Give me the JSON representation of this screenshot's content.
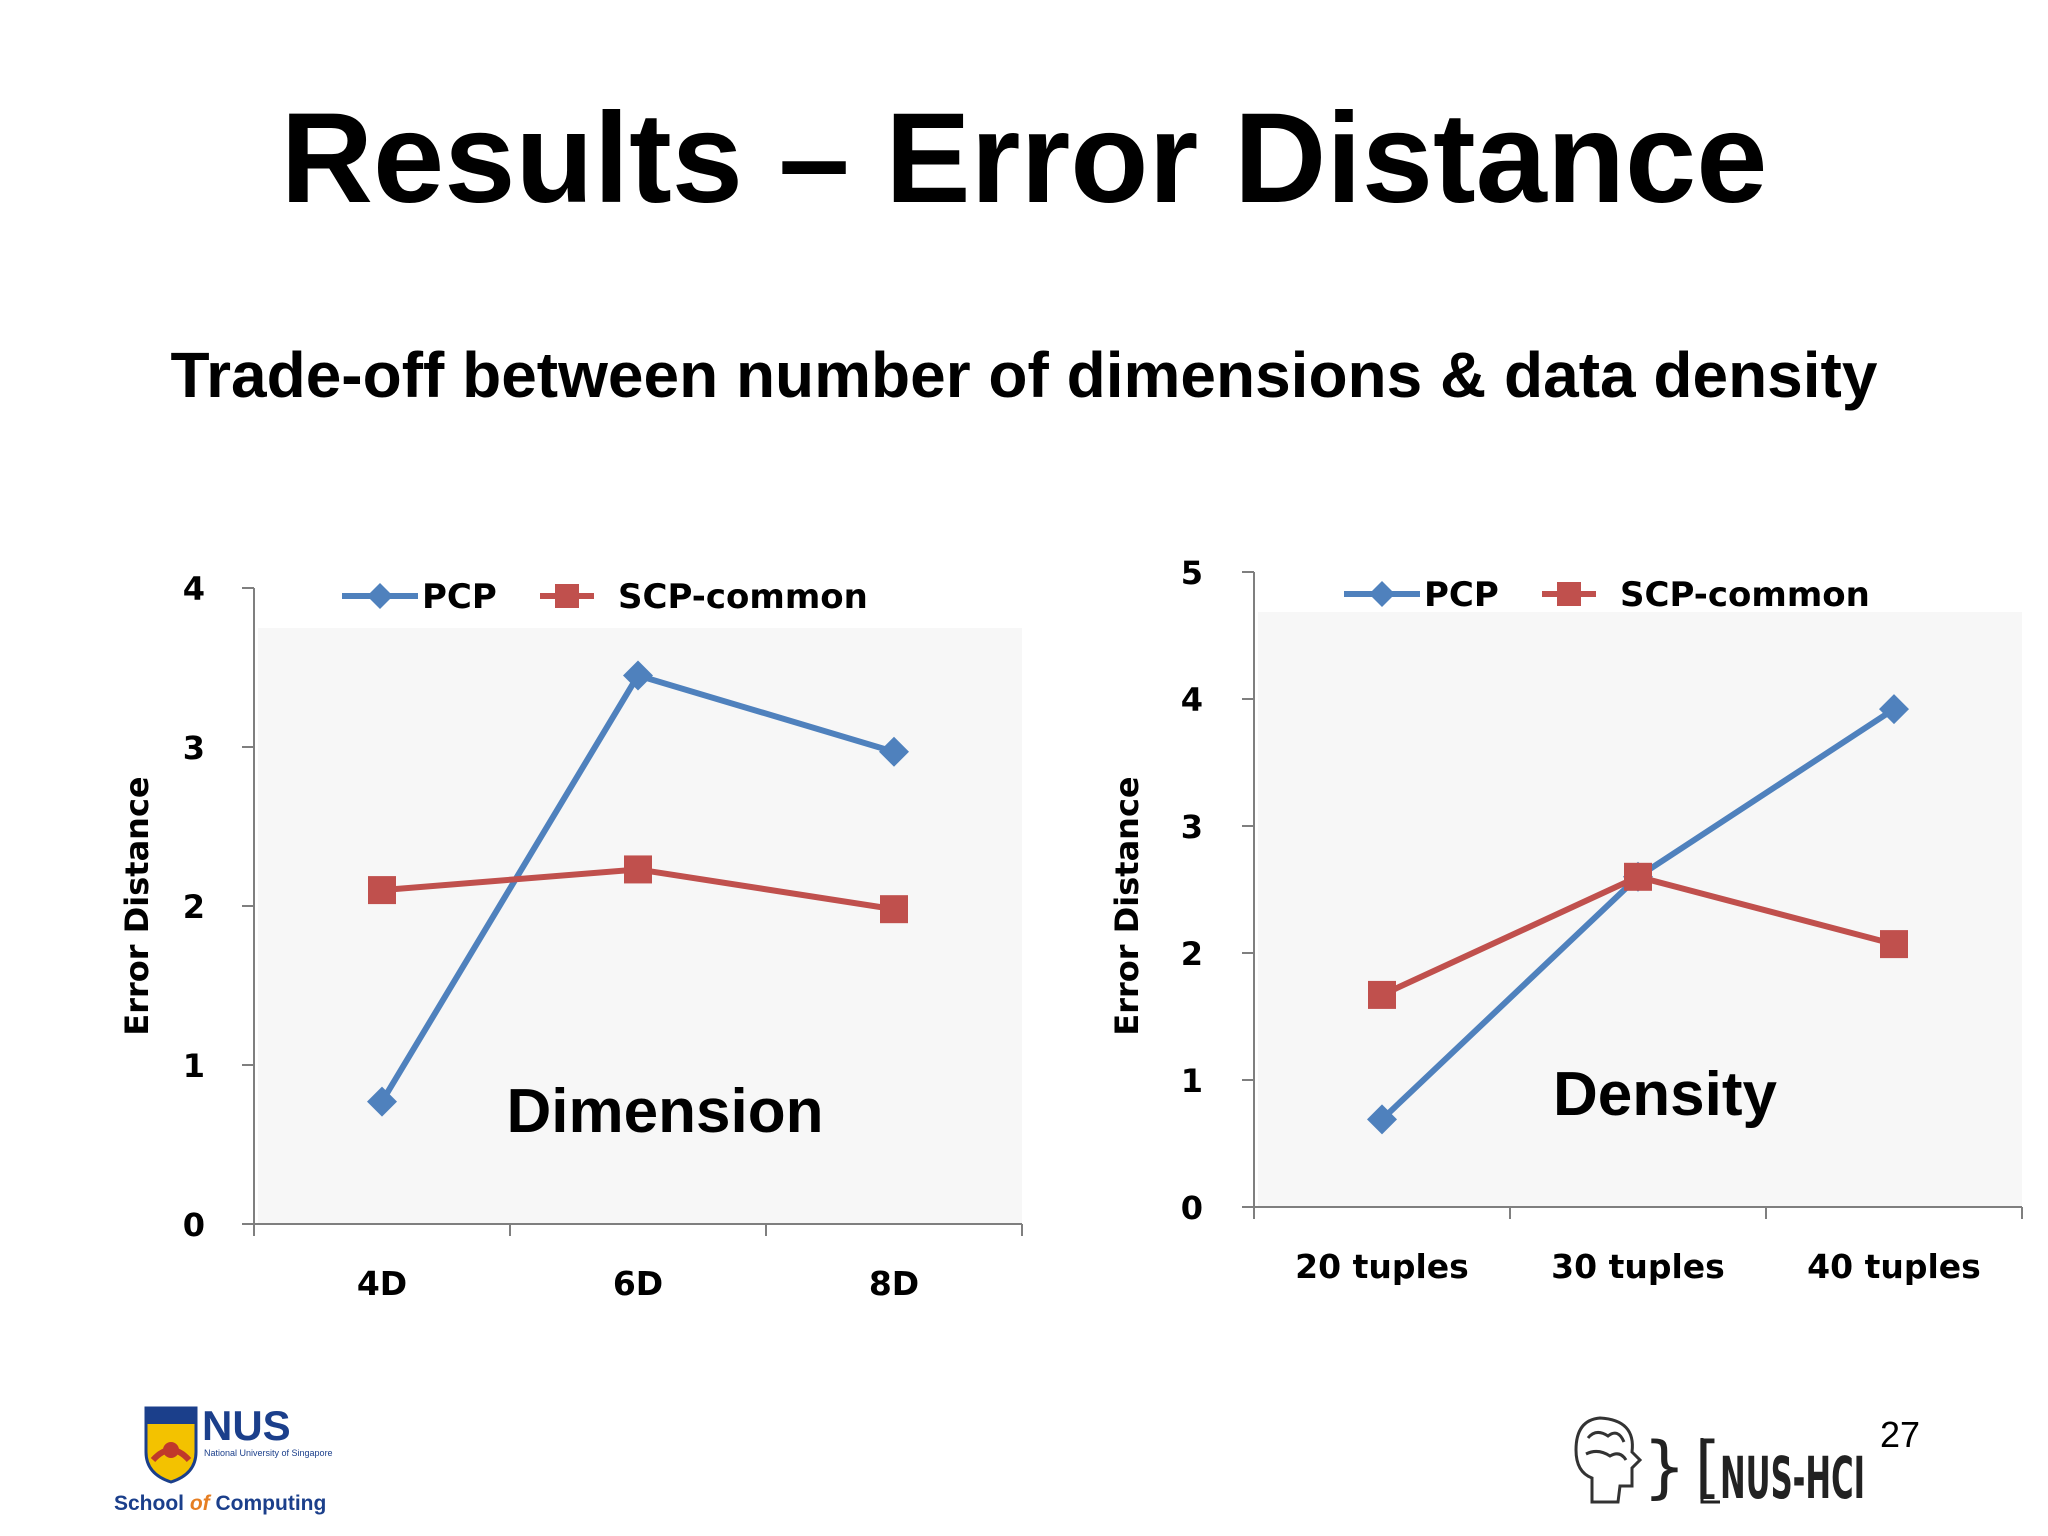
{
  "slide": {
    "title": "Results – Error Distance",
    "subtitle": "Trade-off between number of dimensions & data density",
    "page_number": "27"
  },
  "logos": {
    "nus": {
      "name": "NUS",
      "tagline": "National University of Singapore",
      "school": "School of Computing",
      "school_pre": "School ",
      "school_of": "of",
      "school_post": " Computing"
    },
    "hci": {
      "name": "NUS-HCI"
    }
  },
  "colors": {
    "pcp": "#4f81bd",
    "scp": "#c0504d",
    "axis": "#7f7f7f"
  },
  "chart_data": [
    {
      "type": "line",
      "annotation": "Dimension",
      "ylabel": "Error Distance",
      "xlabel": "",
      "categories": [
        "4D",
        "6D",
        "8D"
      ],
      "ylim": [
        0,
        4
      ],
      "yticks": [
        0,
        1,
        2,
        3,
        4
      ],
      "legend": "top",
      "grid": false,
      "series": [
        {
          "name": "PCP",
          "marker": "diamond",
          "values": [
            0.77,
            3.45,
            2.97
          ]
        },
        {
          "name": "SCP-common",
          "marker": "square",
          "values": [
            2.1,
            2.23,
            1.98
          ]
        }
      ]
    },
    {
      "type": "line",
      "annotation": "Density",
      "ylabel": "Error Distance",
      "xlabel": "",
      "categories": [
        "20 tuples",
        "30 tuples",
        "40 tuples"
      ],
      "ylim": [
        0,
        5
      ],
      "yticks": [
        0,
        1,
        2,
        3,
        4,
        5
      ],
      "legend": "top",
      "grid": false,
      "series": [
        {
          "name": "PCP",
          "marker": "diamond",
          "values": [
            0.69,
            2.6,
            3.92
          ]
        },
        {
          "name": "SCP-common",
          "marker": "square",
          "values": [
            1.67,
            2.6,
            2.07
          ]
        }
      ]
    }
  ]
}
